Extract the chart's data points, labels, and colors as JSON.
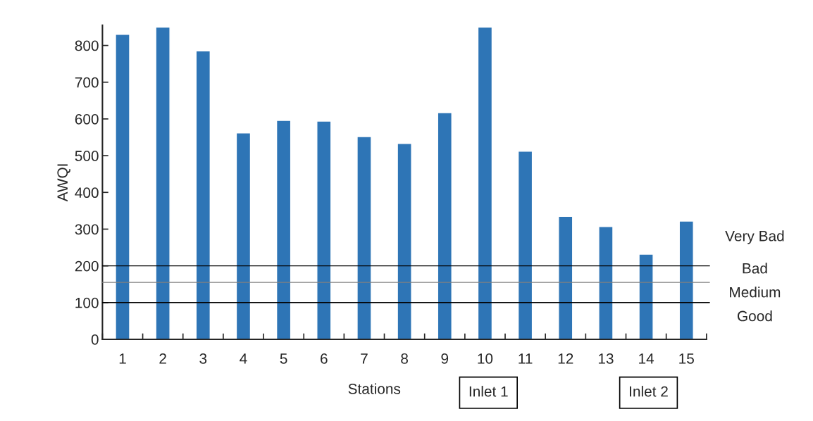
{
  "chart_data": {
    "type": "bar",
    "xlabel": "Stations",
    "ylabel": "AWQI",
    "categories": [
      "1",
      "2",
      "3",
      "4",
      "5",
      "6",
      "7",
      "8",
      "9",
      "10",
      "11",
      "12",
      "13",
      "14",
      "15"
    ],
    "values": [
      830,
      850,
      785,
      562,
      596,
      594,
      552,
      533,
      617,
      850,
      512,
      335,
      307,
      232,
      322
    ],
    "color": "#2e75b6",
    "ylim": [
      0,
      855
    ],
    "yticks": [
      0,
      100,
      200,
      300,
      400,
      500,
      600,
      700,
      800
    ],
    "grid": false,
    "ref_lines": [
      {
        "axis": "y",
        "value": 200,
        "color": "#000000"
      },
      {
        "axis": "y",
        "value": 155,
        "color": "#808080"
      },
      {
        "axis": "y",
        "value": 100,
        "color": "#000000"
      }
    ],
    "annotations": [
      "Very Bad",
      "Bad",
      "Medium",
      "Good",
      "Inlet 1",
      "Inlet 2"
    ]
  }
}
